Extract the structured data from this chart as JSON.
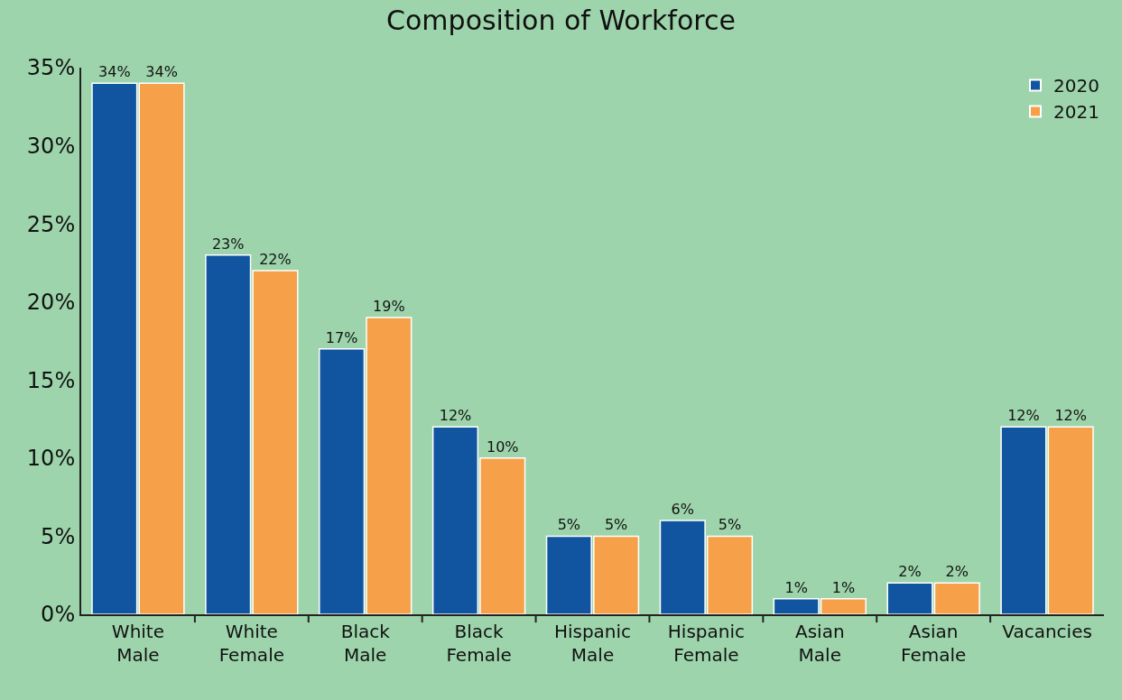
{
  "chart_data": {
    "type": "bar",
    "title": "Composition of Workforce",
    "categories": [
      "White Male",
      "White Female",
      "Black Male",
      "Black Female",
      "Hispanic Male",
      "Hispanic Female",
      "Asian Male",
      "Asian Female",
      "Vacancies"
    ],
    "series": [
      {
        "name": "2020",
        "color": "#1155a0",
        "values": [
          34,
          23,
          17,
          12,
          5,
          6,
          1,
          2,
          12
        ],
        "value_labels": [
          "34%",
          "23%",
          "17%",
          "12%",
          "5%",
          "6%",
          "1%",
          "2%",
          "12%"
        ]
      },
      {
        "name": "2021",
        "color": "#f7a04a",
        "values": [
          34,
          22,
          19,
          10,
          5,
          5,
          1,
          2,
          12
        ],
        "value_labels": [
          "34%",
          "22%",
          "19%",
          "10%",
          "5%",
          "5%",
          "1%",
          "2%",
          "12%"
        ]
      }
    ],
    "ylim": [
      0,
      35
    ],
    "yticks": [
      {
        "value": 0,
        "label": "0%"
      },
      {
        "value": 5,
        "label": "5%"
      },
      {
        "value": 10,
        "label": "10%"
      },
      {
        "value": 15,
        "label": "15%"
      },
      {
        "value": 20,
        "label": "20%"
      },
      {
        "value": 25,
        "label": "25%"
      },
      {
        "value": 30,
        "label": "30%"
      },
      {
        "value": 35,
        "label": "35%"
      }
    ],
    "grid": false,
    "legend": "top right"
  }
}
